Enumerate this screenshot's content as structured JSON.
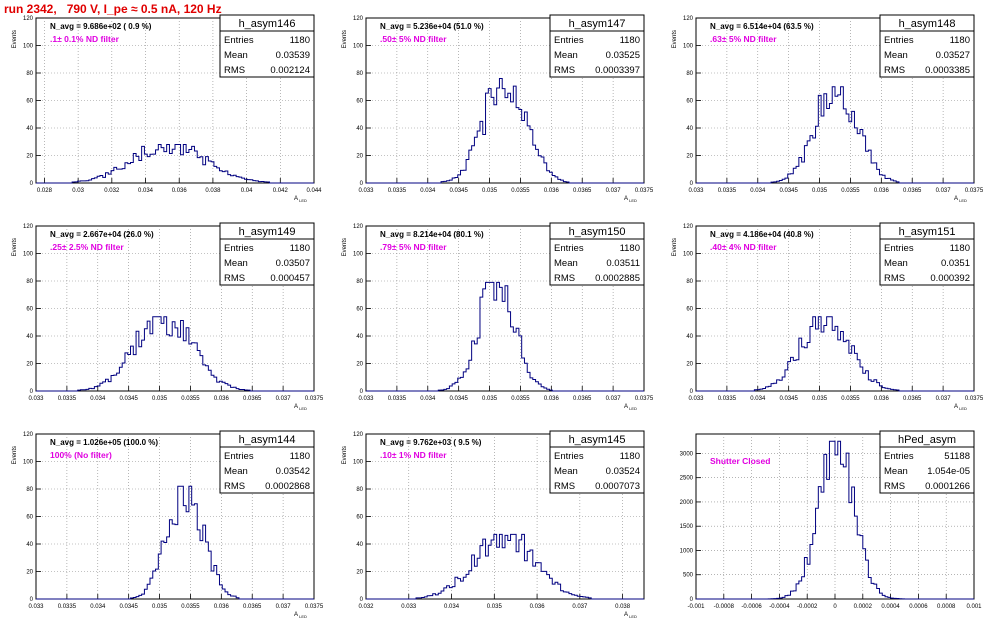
{
  "header": {
    "run_title": "run 2342,   790 V, I_pe ≈ 0.5 nA, 120 Hz"
  },
  "colors": {
    "histogram": "#000080",
    "annotation": "#e000e0",
    "title": "#e00000",
    "grid": "#888888"
  },
  "chart_data": [
    {
      "type": "histogram",
      "name": "h_asym146",
      "stats": {
        "Entries": "1180",
        "Mean": "0.03539",
        "RMS": "0.002124"
      },
      "navg": "N_avg = 9.686e+02 ( 0.9 %)",
      "label": ".1± 0.1% ND filter",
      "ylabel": "Events",
      "xlabel": "A_LED",
      "xlim": [
        0.0275,
        0.044
      ],
      "ylim": [
        0,
        120
      ],
      "xticks": [
        "0.028",
        "0.03",
        "0.032",
        "0.034",
        "0.036",
        "0.038",
        "0.04",
        "0.042",
        "0.044"
      ],
      "xtick_vals": [
        0.028,
        0.03,
        0.032,
        0.034,
        0.036,
        0.038,
        0.04,
        0.042,
        0.044
      ],
      "yticks": [
        0,
        20,
        40,
        60,
        80,
        100,
        120
      ],
      "mean": 0.03539,
      "rms": 0.002124,
      "peak": 28,
      "bins": 100,
      "seed": 146
    },
    {
      "type": "histogram",
      "name": "h_asym147",
      "stats": {
        "Entries": "1180",
        "Mean": "0.03525",
        "RMS": "0.0003397"
      },
      "navg": "N_avg = 5.236e+04 (51.0 %)",
      "label": ".50± 5% ND filter",
      "ylabel": "Events",
      "xlabel": "A_LED",
      "xlim": [
        0.033,
        0.0375
      ],
      "ylim": [
        0,
        120
      ],
      "xticks": [
        "0.033",
        "0.0335",
        "0.034",
        "0.0345",
        "0.035",
        "0.0355",
        "0.036",
        "0.0365",
        "0.037",
        "0.0375"
      ],
      "xtick_vals": [
        0.033,
        0.0335,
        0.034,
        0.0345,
        0.035,
        0.0355,
        0.036,
        0.0365,
        0.037,
        0.0375
      ],
      "yticks": [
        0,
        20,
        40,
        60,
        80,
        100,
        120
      ],
      "mean": 0.03525,
      "rms": 0.0003397,
      "peak": 76,
      "bins": 100,
      "seed": 147
    },
    {
      "type": "histogram",
      "name": "h_asym148",
      "stats": {
        "Entries": "1180",
        "Mean": "0.03527",
        "RMS": "0.0003385"
      },
      "navg": "N_avg = 6.514e+04 (63.5 %)",
      "label": ".63± 5% ND filter",
      "ylabel": "Events",
      "xlabel": "A_LED",
      "xlim": [
        0.033,
        0.0375
      ],
      "ylim": [
        0,
        120
      ],
      "xticks": [
        "0.033",
        "0.0335",
        "0.034",
        "0.0345",
        "0.035",
        "0.0355",
        "0.036",
        "0.0365",
        "0.037",
        "0.0375"
      ],
      "xtick_vals": [
        0.033,
        0.0335,
        0.034,
        0.0345,
        0.035,
        0.0355,
        0.036,
        0.0365,
        0.037,
        0.0375
      ],
      "yticks": [
        0,
        20,
        40,
        60,
        80,
        100,
        120
      ],
      "mean": 0.03527,
      "rms": 0.0003385,
      "peak": 70,
      "bins": 100,
      "seed": 148
    },
    {
      "type": "histogram",
      "name": "h_asym149",
      "stats": {
        "Entries": "1180",
        "Mean": "0.03507",
        "RMS": "0.000457"
      },
      "navg": "N_avg = 2.667e+04 (26.0 %)",
      "label": ".25± 2.5% ND filter",
      "ylabel": "Events",
      "xlabel": "A_LED",
      "xlim": [
        0.033,
        0.0375
      ],
      "ylim": [
        0,
        120
      ],
      "xticks": [
        "0.033",
        "0.0335",
        "0.034",
        "0.0345",
        "0.035",
        "0.0355",
        "0.036",
        "0.0365",
        "0.037",
        "0.0375"
      ],
      "xtick_vals": [
        0.033,
        0.0335,
        0.034,
        0.0345,
        0.035,
        0.0355,
        0.036,
        0.0365,
        0.037,
        0.0375
      ],
      "yticks": [
        0,
        20,
        40,
        60,
        80,
        100,
        120
      ],
      "mean": 0.03507,
      "rms": 0.000457,
      "peak": 54,
      "bins": 100,
      "seed": 149
    },
    {
      "type": "histogram",
      "name": "h_asym150",
      "stats": {
        "Entries": "1180",
        "Mean": "0.03511",
        "RMS": "0.0002885"
      },
      "navg": "N_avg = 8.214e+04 (80.1 %)",
      "label": ".79± 5% ND filter",
      "ylabel": "Events",
      "xlabel": "A_LED",
      "xlim": [
        0.033,
        0.0375
      ],
      "ylim": [
        0,
        120
      ],
      "xticks": [
        "0.033",
        "0.0335",
        "0.034",
        "0.0345",
        "0.035",
        "0.0355",
        "0.036",
        "0.0365",
        "0.037",
        "0.0375"
      ],
      "xtick_vals": [
        0.033,
        0.0335,
        0.034,
        0.0345,
        0.035,
        0.0355,
        0.036,
        0.0365,
        0.037,
        0.0375
      ],
      "yticks": [
        0,
        20,
        40,
        60,
        80,
        100,
        120
      ],
      "mean": 0.03511,
      "rms": 0.0002885,
      "peak": 79,
      "bins": 100,
      "seed": 150
    },
    {
      "type": "histogram",
      "name": "h_asym151",
      "stats": {
        "Entries": "1180",
        "Mean": "0.0351",
        "RMS": "0.000392"
      },
      "navg": "N_avg = 4.186e+04 (40.8 %)",
      "label": ".40± 4% ND filter",
      "ylabel": "Events",
      "xlabel": "A_LED",
      "xlim": [
        0.033,
        0.0375
      ],
      "ylim": [
        0,
        120
      ],
      "xticks": [
        "0.033",
        "0.0335",
        "0.034",
        "0.0345",
        "0.035",
        "0.0355",
        "0.036",
        "0.0365",
        "0.037",
        "0.0375"
      ],
      "xtick_vals": [
        0.033,
        0.0335,
        0.034,
        0.0345,
        0.035,
        0.0355,
        0.036,
        0.0365,
        0.037,
        0.0375
      ],
      "yticks": [
        0,
        20,
        40,
        60,
        80,
        100,
        120
      ],
      "mean": 0.0351,
      "rms": 0.000392,
      "peak": 54,
      "bins": 100,
      "seed": 151
    },
    {
      "type": "histogram",
      "name": "h_asym144",
      "stats": {
        "Entries": "1180",
        "Mean": "0.03542",
        "RMS": "0.0002868"
      },
      "navg": "N_avg = 1.026e+05 (100.0 %)",
      "label": "100% (No filter)",
      "ylabel": "Events",
      "xlabel": "A_LED",
      "xlim": [
        0.033,
        0.0375
      ],
      "ylim": [
        0,
        120
      ],
      "xticks": [
        "0.033",
        "0.0335",
        "0.034",
        "0.0345",
        "0.035",
        "0.0355",
        "0.036",
        "0.0365",
        "0.037",
        "0.0375"
      ],
      "xtick_vals": [
        0.033,
        0.0335,
        0.034,
        0.0345,
        0.035,
        0.0355,
        0.036,
        0.0365,
        0.037,
        0.0375
      ],
      "yticks": [
        0,
        20,
        40,
        60,
        80,
        100,
        120
      ],
      "mean": 0.03542,
      "rms": 0.0002868,
      "peak": 82,
      "bins": 100,
      "seed": 144
    },
    {
      "type": "histogram",
      "name": "h_asym145",
      "stats": {
        "Entries": "1180",
        "Mean": "0.03524",
        "RMS": "0.0007073"
      },
      "navg": "N_avg = 9.762e+03 ( 9.5 %)",
      "label": ".10± 1% ND filter",
      "ylabel": "Events",
      "xlabel": "A_LED",
      "xlim": [
        0.032,
        0.0385
      ],
      "ylim": [
        0,
        120
      ],
      "xticks": [
        "0.032",
        "0.033",
        "0.034",
        "0.035",
        "0.036",
        "0.037",
        "0.038"
      ],
      "xtick_vals": [
        0.032,
        0.033,
        0.034,
        0.035,
        0.036,
        0.037,
        0.038
      ],
      "yticks": [
        0,
        20,
        40,
        60,
        80,
        100,
        120
      ],
      "mean": 0.03524,
      "rms": 0.0007073,
      "peak": 47,
      "bins": 100,
      "seed": 145
    },
    {
      "type": "histogram",
      "name": "hPed_asym",
      "stats": {
        "Entries": "51188",
        "Mean": "1.054e-05",
        "RMS": "0.0001266"
      },
      "navg": "",
      "label": "Shutter Closed",
      "ylabel": "",
      "xlabel": "",
      "xlim": [
        -0.001,
        0.001
      ],
      "ylim": [
        0,
        3400
      ],
      "xticks": [
        "-0.001",
        "-0.0008",
        "-0.0006",
        "-0.0004",
        "-0.0002",
        "0",
        "0.0002",
        "0.0004",
        "0.0006",
        "0.0008",
        "0.001"
      ],
      "xtick_vals": [
        -0.001,
        -0.0008,
        -0.0006,
        -0.0004,
        -0.0002,
        0,
        0.0002,
        0.0004,
        0.0006,
        0.0008,
        0.001
      ],
      "yticks": [
        0,
        500,
        1000,
        1500,
        2000,
        2500,
        3000
      ],
      "mean": 1.054e-05,
      "rms": 0.0001266,
      "peak": 3250,
      "bins": 100,
      "seed": 999
    }
  ]
}
